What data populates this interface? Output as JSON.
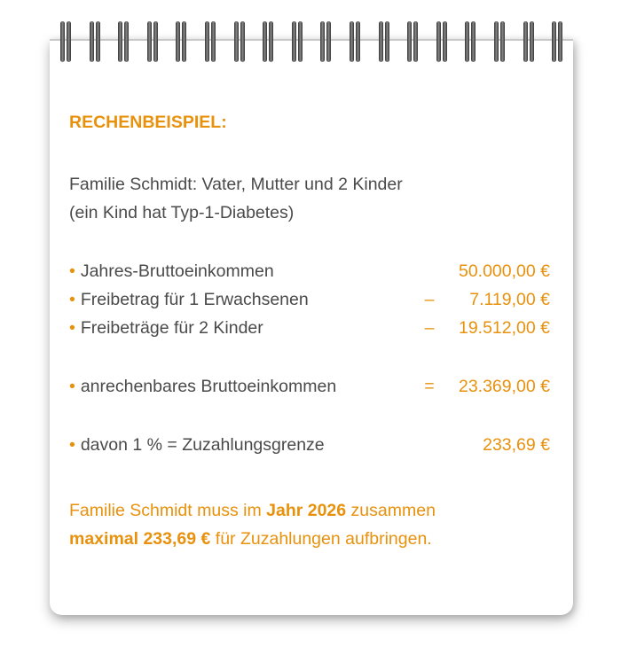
{
  "heading": "RECHENBEISPIEL:",
  "intro": [
    "Familie Schmidt: Vater, Mutter und 2 Kinder",
    "(ein Kind hat Typ-1-Diabetes)"
  ],
  "bullet": "•",
  "rows": [
    {
      "label": "Jahres-Bruttoeinkommen",
      "op": "",
      "value": "50.000,00 €"
    },
    {
      "label": "Freibetrag für 1 Erwachsenen",
      "op": "–",
      "value": "7.119,00 €"
    },
    {
      "label": "Freibeträge für 2 Kinder",
      "op": "–",
      "value": "19.512,00 €"
    },
    {
      "label": "anrechenbares Bruttoeinkommen",
      "op": "=",
      "value": "23.369,00 €"
    },
    {
      "label": "davon 1 % = Zuzahlungsgrenze",
      "op": "",
      "value": "233,69 €"
    }
  ],
  "conclusion": {
    "p1": "Familie Schmidt muss im ",
    "p2": "Jahr 2026",
    "p3": " zusammen",
    "p4": "maximal 233,69 €",
    "p5": " für Zuzahlungen aufbringen."
  },
  "colors": {
    "accent": "#e8910c",
    "text": "#4a4a4a"
  }
}
